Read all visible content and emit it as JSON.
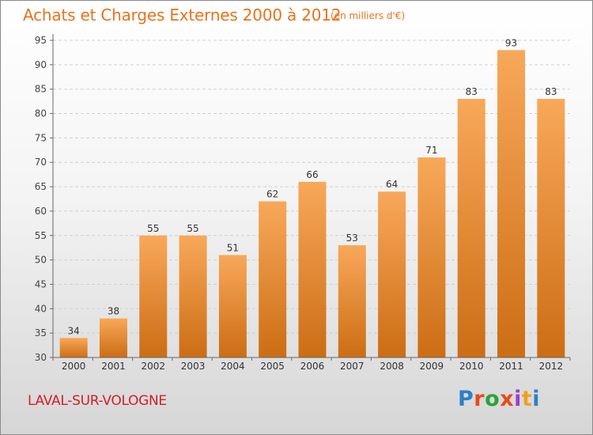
{
  "header": {
    "title": "Achats et Charges Externes 2000 à 2012",
    "unit": "(en milliers d'€)"
  },
  "footer": {
    "place": "LAVAL-SUR-VOLOGNE",
    "logo_text": "Proxiti"
  },
  "colors": {
    "accent": "#e8731c",
    "place": "#d0202a",
    "bar_top": "#f8a85a",
    "bar_bottom": "#cc6d14",
    "grid": "#cfcfcf",
    "logo": [
      "#2d7fc9",
      "#e84a1c",
      "#2aa33a",
      "#e84a1c",
      "#9b3fc7",
      "#f0a020",
      "#2d7fc9"
    ]
  },
  "chart_data": {
    "type": "bar",
    "categories": [
      "2000",
      "2001",
      "2002",
      "2003",
      "2004",
      "2005",
      "2006",
      "2007",
      "2008",
      "2009",
      "2010",
      "2011",
      "2012"
    ],
    "values": [
      34,
      38,
      55,
      55,
      51,
      62,
      66,
      53,
      64,
      71,
      83,
      93,
      83
    ],
    "title": "Achats et Charges Externes 2000 à 2012",
    "ylim": [
      30,
      95
    ],
    "yticks": [
      30,
      35,
      40,
      45,
      50,
      55,
      60,
      65,
      70,
      75,
      80,
      85,
      90,
      95
    ],
    "grid": true,
    "data_labels": true
  }
}
